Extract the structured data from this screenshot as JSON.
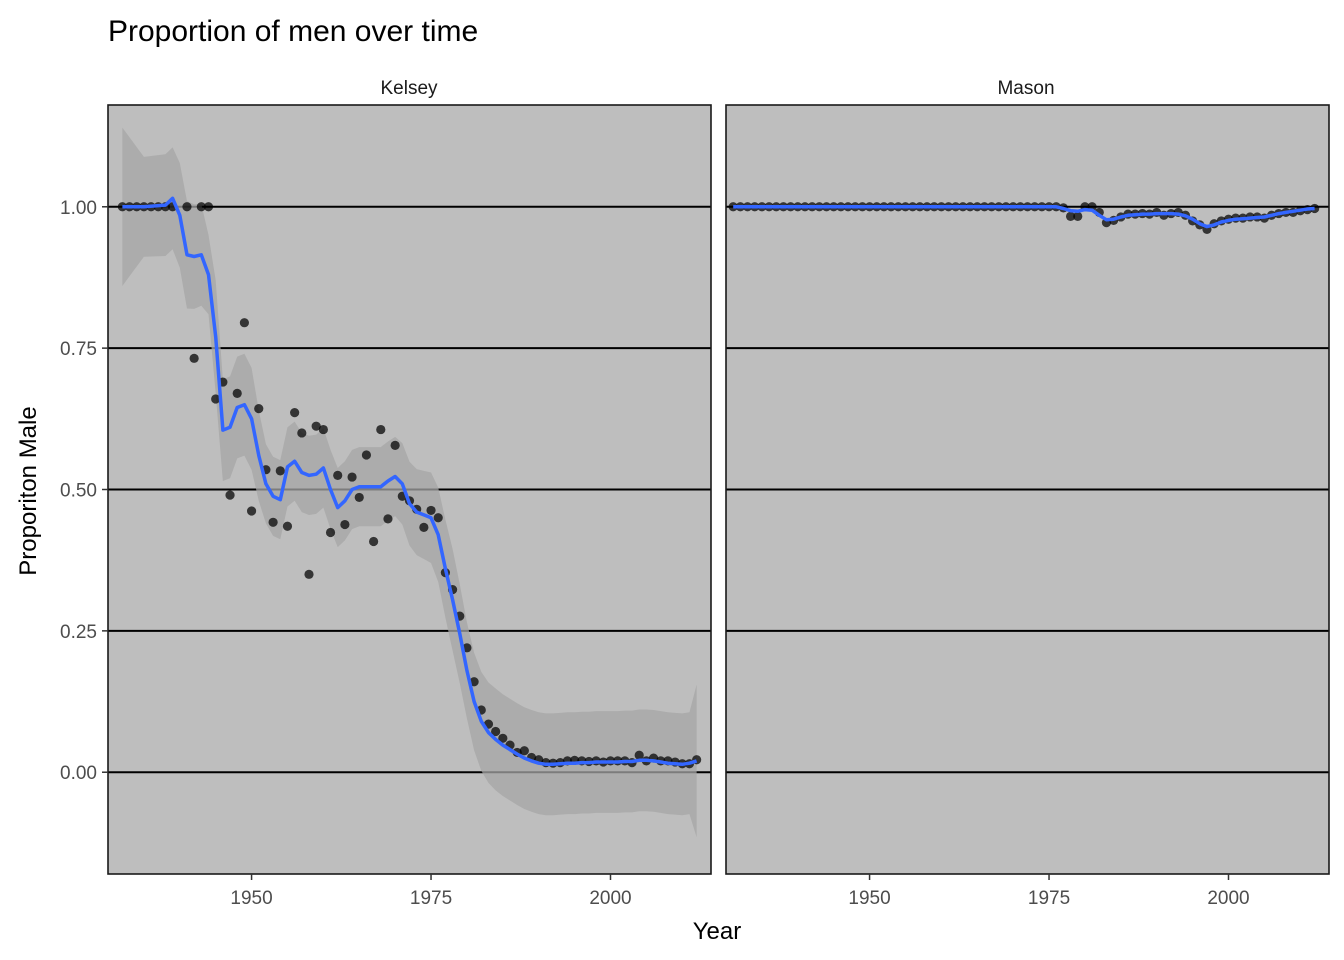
{
  "chart_data": {
    "type": "scatter",
    "title": "Proportion of men over time",
    "xlabel": "Year",
    "ylabel": "Proporiton Male",
    "xlim": [
      1930,
      2014
    ],
    "ylim": [
      -0.18,
      1.18
    ],
    "x_ticks": [
      1950,
      1975,
      2000
    ],
    "y_ticks": [
      0.0,
      0.25,
      0.5,
      0.75,
      1.0
    ],
    "y_tick_labels": [
      "0.00",
      "0.25",
      "0.50",
      "0.75",
      "1.00"
    ],
    "grid": "horizontal major lines",
    "legend": "none",
    "colors": {
      "panel_background": "#bebebe",
      "points": "#000000",
      "smooth_line": "#3366ff",
      "ribbon": "#a6a6a6",
      "grid": "#000000"
    },
    "panels": [
      {
        "name": "Kelsey",
        "points": [
          [
            1932,
            1.0
          ],
          [
            1933,
            1.0
          ],
          [
            1934,
            1.0
          ],
          [
            1935,
            1.0
          ],
          [
            1936,
            1.0
          ],
          [
            1937,
            1.0
          ],
          [
            1938,
            1.0
          ],
          [
            1939,
            1.0
          ],
          [
            1941,
            1.0
          ],
          [
            1942,
            0.732
          ],
          [
            1943,
            1.0
          ],
          [
            1944,
            1.0
          ],
          [
            1945,
            0.66
          ],
          [
            1946,
            0.69
          ],
          [
            1947,
            0.49
          ],
          [
            1948,
            0.67
          ],
          [
            1949,
            0.795
          ],
          [
            1950,
            0.462
          ],
          [
            1951,
            0.643
          ],
          [
            1952,
            0.535
          ],
          [
            1953,
            0.442
          ],
          [
            1954,
            0.533
          ],
          [
            1955,
            0.435
          ],
          [
            1956,
            0.636
          ],
          [
            1957,
            0.6
          ],
          [
            1958,
            0.35
          ],
          [
            1959,
            0.612
          ],
          [
            1960,
            0.606
          ],
          [
            1961,
            0.424
          ],
          [
            1962,
            0.525
          ],
          [
            1963,
            0.438
          ],
          [
            1964,
            0.522
          ],
          [
            1965,
            0.486
          ],
          [
            1966,
            0.561
          ],
          [
            1967,
            0.408
          ],
          [
            1968,
            0.606
          ],
          [
            1969,
            0.448
          ],
          [
            1970,
            0.578
          ],
          [
            1971,
            0.488
          ],
          [
            1972,
            0.48
          ],
          [
            1973,
            0.465
          ],
          [
            1974,
            0.433
          ],
          [
            1975,
            0.463
          ],
          [
            1976,
            0.45
          ],
          [
            1977,
            0.353
          ],
          [
            1978,
            0.323
          ],
          [
            1979,
            0.276
          ],
          [
            1980,
            0.22
          ],
          [
            1981,
            0.16
          ],
          [
            1982,
            0.11
          ],
          [
            1983,
            0.085
          ],
          [
            1984,
            0.072
          ],
          [
            1985,
            0.06
          ],
          [
            1986,
            0.048
          ],
          [
            1987,
            0.035
          ],
          [
            1988,
            0.038
          ],
          [
            1989,
            0.026
          ],
          [
            1990,
            0.022
          ],
          [
            1991,
            0.017
          ],
          [
            1992,
            0.016
          ],
          [
            1993,
            0.017
          ],
          [
            1994,
            0.02
          ],
          [
            1995,
            0.021
          ],
          [
            1996,
            0.02
          ],
          [
            1997,
            0.019
          ],
          [
            1998,
            0.02
          ],
          [
            1999,
            0.018
          ],
          [
            2000,
            0.02
          ],
          [
            2001,
            0.02
          ],
          [
            2002,
            0.02
          ],
          [
            2003,
            0.017
          ],
          [
            2004,
            0.03
          ],
          [
            2005,
            0.02
          ],
          [
            2006,
            0.025
          ],
          [
            2007,
            0.02
          ],
          [
            2008,
            0.02
          ],
          [
            2009,
            0.018
          ],
          [
            2010,
            0.015
          ],
          [
            2011,
            0.015
          ],
          [
            2012,
            0.022
          ]
        ],
        "smooth": [
          [
            1932,
            1.0
          ],
          [
            1935,
            1.0
          ],
          [
            1938,
            1.003
          ],
          [
            1939,
            1.015
          ],
          [
            1940,
            0.985
          ],
          [
            1941,
            0.915
          ],
          [
            1942,
            0.912
          ],
          [
            1943,
            0.915
          ],
          [
            1944,
            0.88
          ],
          [
            1945,
            0.77
          ],
          [
            1946,
            0.605
          ],
          [
            1947,
            0.61
          ],
          [
            1948,
            0.645
          ],
          [
            1949,
            0.65
          ],
          [
            1950,
            0.625
          ],
          [
            1951,
            0.56
          ],
          [
            1952,
            0.51
          ],
          [
            1953,
            0.488
          ],
          [
            1954,
            0.482
          ],
          [
            1955,
            0.54
          ],
          [
            1956,
            0.55
          ],
          [
            1957,
            0.53
          ],
          [
            1958,
            0.525
          ],
          [
            1959,
            0.527
          ],
          [
            1960,
            0.538
          ],
          [
            1961,
            0.5
          ],
          [
            1962,
            0.468
          ],
          [
            1963,
            0.48
          ],
          [
            1964,
            0.5
          ],
          [
            1965,
            0.505
          ],
          [
            1966,
            0.505
          ],
          [
            1967,
            0.505
          ],
          [
            1968,
            0.505
          ],
          [
            1969,
            0.515
          ],
          [
            1970,
            0.523
          ],
          [
            1971,
            0.51
          ],
          [
            1972,
            0.475
          ],
          [
            1973,
            0.46
          ],
          [
            1974,
            0.455
          ],
          [
            1975,
            0.45
          ],
          [
            1976,
            0.42
          ],
          [
            1977,
            0.36
          ],
          [
            1978,
            0.305
          ],
          [
            1979,
            0.245
          ],
          [
            1980,
            0.18
          ],
          [
            1981,
            0.125
          ],
          [
            1982,
            0.09
          ],
          [
            1983,
            0.07
          ],
          [
            1984,
            0.058
          ],
          [
            1985,
            0.048
          ],
          [
            1986,
            0.04
          ],
          [
            1987,
            0.032
          ],
          [
            1988,
            0.025
          ],
          [
            1989,
            0.02
          ],
          [
            1990,
            0.016
          ],
          [
            1991,
            0.014
          ],
          [
            1992,
            0.014
          ],
          [
            1993,
            0.015
          ],
          [
            1994,
            0.016
          ],
          [
            1995,
            0.016
          ],
          [
            1996,
            0.017
          ],
          [
            1997,
            0.017
          ],
          [
            1998,
            0.018
          ],
          [
            1999,
            0.018
          ],
          [
            2000,
            0.018
          ],
          [
            2001,
            0.018
          ],
          [
            2002,
            0.019
          ],
          [
            2003,
            0.019
          ],
          [
            2004,
            0.021
          ],
          [
            2005,
            0.021
          ],
          [
            2006,
            0.02
          ],
          [
            2007,
            0.018
          ],
          [
            2008,
            0.016
          ],
          [
            2009,
            0.015
          ],
          [
            2010,
            0.014
          ],
          [
            2011,
            0.016
          ],
          [
            2012,
            0.02
          ]
        ],
        "ribbon_half_width": [
          [
            1932,
            0.14
          ],
          [
            1933,
            0.085
          ],
          [
            1936,
            0.09
          ],
          [
            1939,
            0.09
          ],
          [
            1941,
            0.095
          ],
          [
            1943,
            0.09
          ],
          [
            1944,
            0.07
          ],
          [
            1945,
            0.1
          ],
          [
            1946,
            0.09
          ],
          [
            1948,
            0.09
          ],
          [
            1950,
            0.09
          ],
          [
            1952,
            0.07
          ],
          [
            1955,
            0.07
          ],
          [
            1960,
            0.07
          ],
          [
            1965,
            0.07
          ],
          [
            1970,
            0.07
          ],
          [
            1975,
            0.08
          ],
          [
            1978,
            0.09
          ],
          [
            1980,
            0.085
          ],
          [
            1984,
            0.09
          ],
          [
            1988,
            0.09
          ],
          [
            1992,
            0.09
          ],
          [
            1998,
            0.09
          ],
          [
            2004,
            0.09
          ],
          [
            2008,
            0.09
          ],
          [
            2011,
            0.09
          ],
          [
            2012,
            0.135
          ]
        ]
      },
      {
        "name": "Mason",
        "points": [
          [
            1931,
            1.0
          ],
          [
            1932,
            1.0
          ],
          [
            1933,
            1.0
          ],
          [
            1934,
            1.0
          ],
          [
            1935,
            1.0
          ],
          [
            1936,
            1.0
          ],
          [
            1937,
            1.0
          ],
          [
            1938,
            1.0
          ],
          [
            1939,
            1.0
          ],
          [
            1940,
            1.0
          ],
          [
            1941,
            1.0
          ],
          [
            1942,
            1.0
          ],
          [
            1943,
            1.0
          ],
          [
            1944,
            1.0
          ],
          [
            1945,
            1.0
          ],
          [
            1946,
            1.0
          ],
          [
            1947,
            1.0
          ],
          [
            1948,
            1.0
          ],
          [
            1949,
            1.0
          ],
          [
            1950,
            1.0
          ],
          [
            1951,
            1.0
          ],
          [
            1952,
            1.0
          ],
          [
            1953,
            1.0
          ],
          [
            1954,
            1.0
          ],
          [
            1955,
            1.0
          ],
          [
            1956,
            1.0
          ],
          [
            1957,
            1.0
          ],
          [
            1958,
            1.0
          ],
          [
            1959,
            1.0
          ],
          [
            1960,
            1.0
          ],
          [
            1961,
            1.0
          ],
          [
            1962,
            1.0
          ],
          [
            1963,
            1.0
          ],
          [
            1964,
            1.0
          ],
          [
            1965,
            1.0
          ],
          [
            1966,
            1.0
          ],
          [
            1967,
            1.0
          ],
          [
            1968,
            1.0
          ],
          [
            1969,
            1.0
          ],
          [
            1970,
            1.0
          ],
          [
            1971,
            1.0
          ],
          [
            1972,
            1.0
          ],
          [
            1973,
            1.0
          ],
          [
            1974,
            1.0
          ],
          [
            1975,
            1.0
          ],
          [
            1976,
            1.0
          ],
          [
            1977,
            0.998
          ],
          [
            1978,
            0.983
          ],
          [
            1979,
            0.983
          ],
          [
            1980,
            1.0
          ],
          [
            1981,
            1.0
          ],
          [
            1982,
            0.99
          ],
          [
            1983,
            0.972
          ],
          [
            1984,
            0.976
          ],
          [
            1985,
            0.982
          ],
          [
            1986,
            0.987
          ],
          [
            1987,
            0.987
          ],
          [
            1988,
            0.988
          ],
          [
            1989,
            0.987
          ],
          [
            1990,
            0.99
          ],
          [
            1991,
            0.985
          ],
          [
            1992,
            0.988
          ],
          [
            1993,
            0.99
          ],
          [
            1994,
            0.985
          ],
          [
            1995,
            0.975
          ],
          [
            1996,
            0.968
          ],
          [
            1997,
            0.96
          ],
          [
            1998,
            0.97
          ],
          [
            1999,
            0.975
          ],
          [
            2000,
            0.978
          ],
          [
            2001,
            0.98
          ],
          [
            2002,
            0.98
          ],
          [
            2003,
            0.982
          ],
          [
            2004,
            0.982
          ],
          [
            2005,
            0.98
          ],
          [
            2006,
            0.985
          ],
          [
            2007,
            0.988
          ],
          [
            2008,
            0.99
          ],
          [
            2009,
            0.99
          ],
          [
            2010,
            0.993
          ],
          [
            2011,
            0.995
          ],
          [
            2012,
            0.997
          ]
        ],
        "smooth": [
          [
            1931,
            1.0
          ],
          [
            1976,
            1.0
          ],
          [
            1977,
            0.997
          ],
          [
            1978,
            0.993
          ],
          [
            1979,
            0.992
          ],
          [
            1980,
            0.995
          ],
          [
            1981,
            0.994
          ],
          [
            1982,
            0.985
          ],
          [
            1983,
            0.977
          ],
          [
            1984,
            0.978
          ],
          [
            1985,
            0.982
          ],
          [
            1986,
            0.985
          ],
          [
            1987,
            0.986
          ],
          [
            1988,
            0.987
          ],
          [
            1989,
            0.987
          ],
          [
            1990,
            0.988
          ],
          [
            1991,
            0.988
          ],
          [
            1992,
            0.988
          ],
          [
            1993,
            0.987
          ],
          [
            1994,
            0.984
          ],
          [
            1995,
            0.978
          ],
          [
            1996,
            0.97
          ],
          [
            1997,
            0.965
          ],
          [
            1998,
            0.968
          ],
          [
            1999,
            0.973
          ],
          [
            2000,
            0.976
          ],
          [
            2001,
            0.978
          ],
          [
            2002,
            0.979
          ],
          [
            2003,
            0.98
          ],
          [
            2004,
            0.981
          ],
          [
            2005,
            0.982
          ],
          [
            2006,
            0.985
          ],
          [
            2007,
            0.988
          ],
          [
            2008,
            0.99
          ],
          [
            2009,
            0.992
          ],
          [
            2010,
            0.994
          ],
          [
            2011,
            0.996
          ],
          [
            2012,
            0.997
          ]
        ]
      }
    ]
  }
}
